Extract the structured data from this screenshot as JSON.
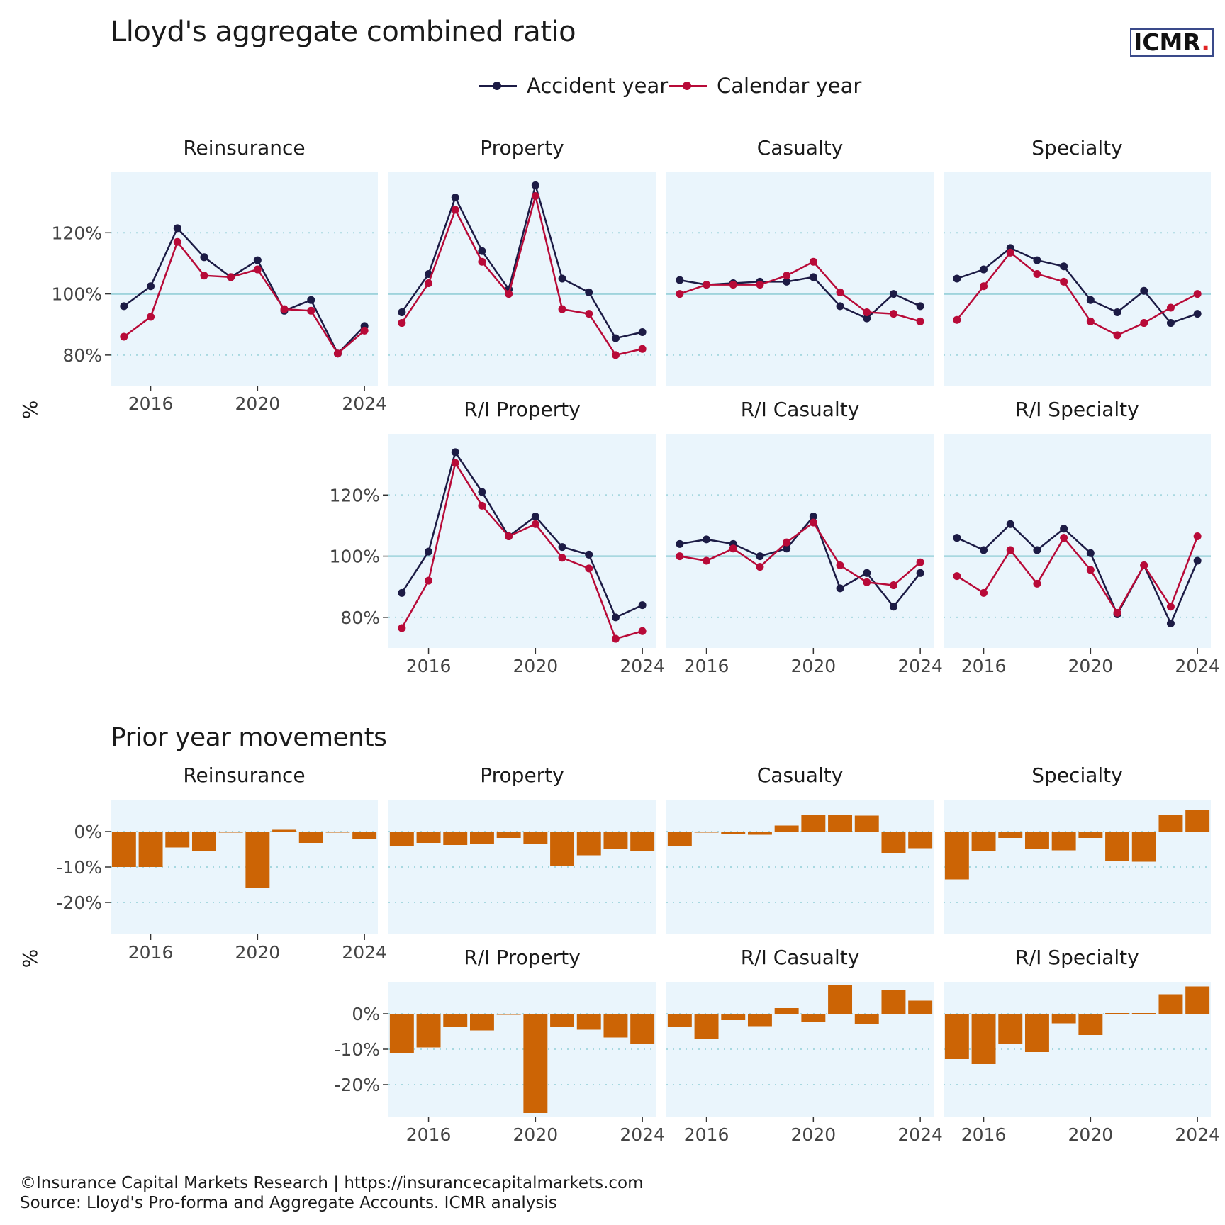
{
  "title": "Lloyd's aggregate combined ratio",
  "subtitle_bottom": "Prior year movements",
  "logo": {
    "text": "ICMR",
    "dot": "."
  },
  "legend": [
    {
      "label": "Accident year",
      "color": "#1c1b45"
    },
    {
      "label": "Calendar year",
      "color": "#b80a38"
    }
  ],
  "footer": [
    "©Insurance Capital Markets Research | https://insurancecapitalmarkets.com",
    "Source: Lloyd's Pro-forma and Aggregate Accounts. ICMR analysis"
  ],
  "colors": {
    "panel_bg": "#eaf5fc",
    "reference_line": "#9fd3dc",
    "grid_dotted": "#a7d8e0",
    "accident": "#1c1b45",
    "calendar": "#b80a38",
    "bar": "#cc6405"
  },
  "chart_data": [
    {
      "type": "line",
      "title": "Lloyd's aggregate combined ratio",
      "ylabel": "%",
      "ylim": [
        70,
        140
      ],
      "yticks": [
        "80%",
        "100%",
        "120%"
      ],
      "yticks_values": [
        80,
        100,
        120
      ],
      "reference_line": 100,
      "xlim": [
        2014.5,
        2024.5
      ],
      "xticks": [
        "2016",
        "2020",
        "2024"
      ],
      "xticks_values": [
        2016,
        2020,
        2024
      ],
      "x": [
        2015,
        2016,
        2017,
        2018,
        2019,
        2020,
        2021,
        2022,
        2023,
        2024
      ],
      "legend_position": "top",
      "panels": [
        {
          "name": "Reinsurance",
          "series": [
            {
              "name": "Accident year",
              "values": [
                96,
                102.5,
                121.5,
                112,
                105.5,
                111,
                94.5,
                98,
                80.5,
                89.5
              ]
            },
            {
              "name": "Calendar year",
              "values": [
                86,
                92.5,
                117,
                106,
                105.5,
                108,
                95,
                94.5,
                80.5,
                88
              ]
            }
          ]
        },
        {
          "name": "Property",
          "series": [
            {
              "name": "Accident year",
              "values": [
                94,
                106.5,
                131.5,
                114,
                101.5,
                135.5,
                105,
                100.5,
                85.5,
                87.5
              ]
            },
            {
              "name": "Calendar year",
              "values": [
                90.5,
                103.5,
                127.5,
                110.5,
                100,
                132,
                95,
                93.5,
                80,
                82
              ]
            }
          ]
        },
        {
          "name": "Casualty",
          "series": [
            {
              "name": "Accident year",
              "values": [
                104.5,
                103,
                103.5,
                104,
                104,
                105.5,
                96,
                92,
                100,
                96
              ]
            },
            {
              "name": "Calendar year",
              "values": [
                100,
                103,
                103,
                103,
                106,
                110.5,
                100.5,
                94,
                93.5,
                91
              ]
            }
          ]
        },
        {
          "name": "Specialty",
          "series": [
            {
              "name": "Accident year",
              "values": [
                105,
                108,
                115,
                111,
                109,
                98,
                94,
                101,
                90.5,
                93.5
              ]
            },
            {
              "name": "Calendar year",
              "values": [
                91.5,
                102.5,
                113.5,
                106.5,
                104,
                91,
                86.5,
                90.5,
                95.5,
                100
              ]
            }
          ]
        },
        {
          "name": "R/I Property",
          "series": [
            {
              "name": "Accident year",
              "values": [
                88,
                101.5,
                134,
                121,
                106.5,
                113,
                103,
                100.5,
                80,
                84
              ]
            },
            {
              "name": "Calendar year",
              "values": [
                76.5,
                92,
                130.5,
                116.5,
                106.5,
                110.5,
                99.5,
                96,
                73,
                75.5
              ]
            }
          ]
        },
        {
          "name": "R/I Casualty",
          "series": [
            {
              "name": "Accident year",
              "values": [
                104,
                105.5,
                104,
                100,
                102.5,
                113,
                89.5,
                94.5,
                83.5,
                94.5
              ]
            },
            {
              "name": "Calendar year",
              "values": [
                100,
                98.5,
                102.5,
                96.5,
                104.5,
                111,
                97,
                91.5,
                90.5,
                98
              ]
            }
          ]
        },
        {
          "name": "R/I Specialty",
          "series": [
            {
              "name": "Accident year",
              "values": [
                106,
                102,
                110.5,
                102,
                109,
                101,
                81,
                97,
                78,
                98.5
              ]
            },
            {
              "name": "Calendar year",
              "values": [
                93.5,
                88,
                102,
                91,
                106,
                95.5,
                81.5,
                97,
                83.5,
                106.5
              ]
            }
          ]
        }
      ]
    },
    {
      "type": "bar",
      "title": "Prior year movements",
      "ylabel": "%",
      "ylim": [
        -29,
        9
      ],
      "yticks": [
        "0%",
        "-10%",
        "-20%"
      ],
      "yticks_values": [
        0,
        -10,
        -20
      ],
      "xlim": [
        2014.5,
        2024.5
      ],
      "xticks": [
        "2016",
        "2020",
        "2024"
      ],
      "xticks_values": [
        2016,
        2020,
        2024
      ],
      "x": [
        2015,
        2016,
        2017,
        2018,
        2019,
        2020,
        2021,
        2022,
        2023,
        2024
      ],
      "panels": [
        {
          "name": "Reinsurance",
          "values": [
            -10,
            -10,
            -4.5,
            -5.5,
            -0.3,
            -16,
            0.5,
            -3.2,
            -0.3,
            -2
          ]
        },
        {
          "name": "Property",
          "values": [
            -4,
            -3.2,
            -3.8,
            -3.6,
            -1.8,
            -3.4,
            -9.8,
            -6.7,
            -5,
            -5.5
          ]
        },
        {
          "name": "Casualty",
          "values": [
            -4.2,
            -0.3,
            -0.6,
            -0.9,
            1.7,
            4.8,
            4.8,
            4.5,
            -6,
            -4.7
          ]
        },
        {
          "name": "Specialty",
          "values": [
            -13.5,
            -5.5,
            -1.8,
            -5,
            -5.3,
            -1.8,
            -8.3,
            -8.5,
            4.8,
            6.2
          ]
        },
        {
          "name": "R/I Property",
          "values": [
            -11,
            -9.5,
            -3.8,
            -4.7,
            -0.3,
            -28,
            -3.8,
            -4.5,
            -6.7,
            -8.5
          ]
        },
        {
          "name": "R/I Casualty",
          "values": [
            -3.8,
            -7,
            -1.8,
            -3.5,
            1.6,
            -2.2,
            8,
            -2.8,
            6.7,
            3.7
          ]
        },
        {
          "name": "R/I Specialty",
          "values": [
            -12.8,
            -14.2,
            -8.5,
            -10.8,
            -2.7,
            -6,
            0.2,
            0.2,
            5.5,
            7.7
          ]
        }
      ]
    }
  ]
}
